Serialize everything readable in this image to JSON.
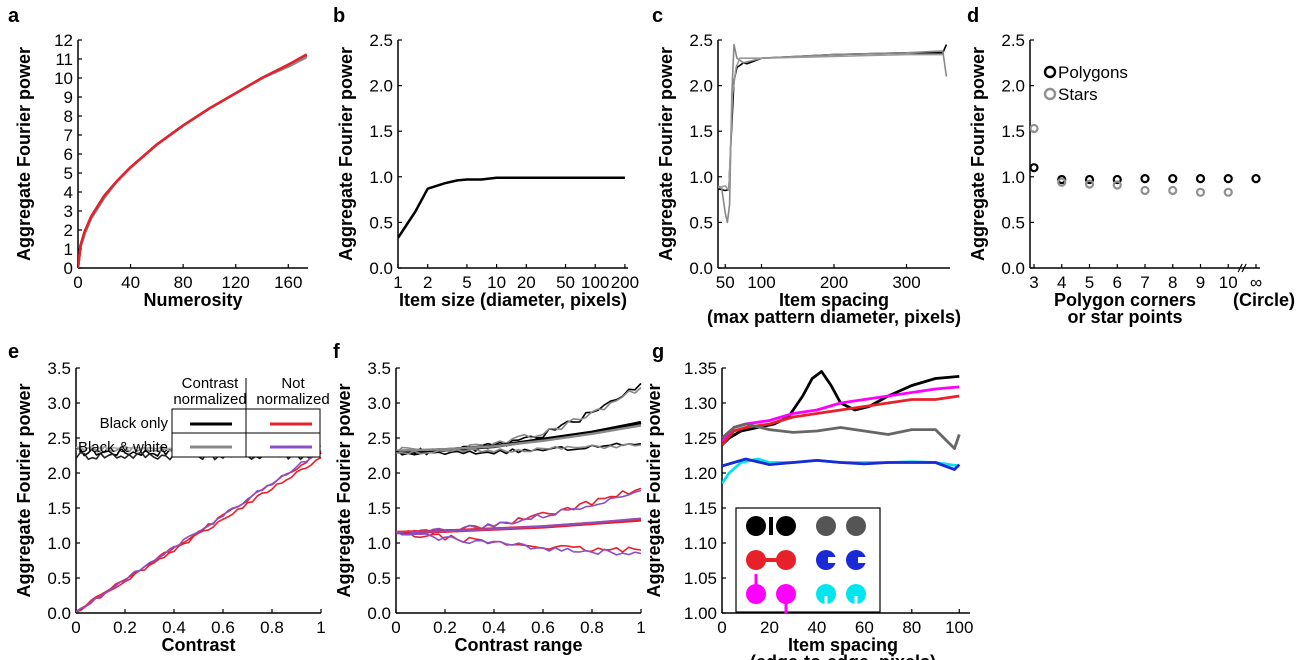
{
  "chart_data": [
    {
      "panel": "a",
      "type": "line",
      "xlabel": "Numerosity",
      "ylabel": "Aggregate Fourier power",
      "xlim": [
        0,
        175
      ],
      "ylim": [
        0,
        12
      ],
      "xticks": [
        0,
        40,
        80,
        120,
        160
      ],
      "yticks": [
        0,
        1,
        2,
        3,
        4,
        5,
        6,
        7,
        8,
        9,
        10,
        11,
        12
      ],
      "series": [
        {
          "color": "#000000",
          "x": [
            0,
            2,
            5,
            10,
            20,
            30,
            40,
            60,
            80,
            100,
            120,
            140,
            160,
            174
          ],
          "y": [
            0,
            1.2,
            1.9,
            2.7,
            3.8,
            4.6,
            5.3,
            6.5,
            7.5,
            8.4,
            9.2,
            10.0,
            10.7,
            11.2
          ]
        },
        {
          "color": "#888888",
          "x": [
            0,
            2,
            5,
            10,
            20,
            30,
            40,
            60,
            80,
            100,
            120,
            140,
            160,
            174
          ],
          "y": [
            0,
            1.1,
            1.8,
            2.6,
            3.7,
            4.6,
            5.3,
            6.5,
            7.5,
            8.4,
            9.2,
            10.0,
            10.6,
            11.1
          ]
        },
        {
          "color": "#e8202a",
          "x": [
            0,
            2,
            5,
            10,
            20,
            30,
            40,
            60,
            80,
            100,
            120,
            140,
            160,
            174
          ],
          "y": [
            0,
            1.2,
            1.9,
            2.7,
            3.8,
            4.6,
            5.3,
            6.5,
            7.5,
            8.4,
            9.2,
            10.0,
            10.7,
            11.25
          ]
        }
      ]
    },
    {
      "panel": "b",
      "type": "line",
      "xlabel": "Item size (diameter, pixels)",
      "ylabel": "Aggregate Fourier power",
      "xscale": "log",
      "xlim": [
        1,
        215
      ],
      "ylim": [
        0,
        2.5
      ],
      "xticks": [
        1,
        2,
        5,
        10,
        20,
        50,
        100,
        200
      ],
      "yticks": [
        0,
        0.5,
        1.0,
        1.5,
        2.0,
        2.5
      ],
      "series": [
        {
          "color": "#000000",
          "x": [
            1,
            1.5,
            2,
            3,
            4,
            5,
            7,
            10,
            20,
            50,
            100,
            200
          ],
          "y": [
            0.33,
            0.62,
            0.87,
            0.93,
            0.96,
            0.97,
            0.97,
            0.99,
            0.99,
            0.99,
            0.99,
            0.99
          ]
        }
      ]
    },
    {
      "panel": "c",
      "type": "line",
      "xlabel": "Item spacing\n(max pattern diameter, pixels)",
      "ylabel": "Aggregate Fourier power",
      "xlim": [
        40,
        360
      ],
      "ylim": [
        0,
        2.5
      ],
      "xticks": [
        50,
        100,
        200,
        300
      ],
      "yticks": [
        0,
        0.5,
        1.0,
        1.5,
        2.0,
        2.5
      ],
      "series": [
        {
          "color": "#000000",
          "x": [
            40,
            45,
            50,
            55,
            58,
            62,
            66,
            70,
            75,
            80,
            90,
            100,
            150,
            200,
            250,
            300,
            350,
            355
          ],
          "y": [
            0.87,
            0.86,
            0.85,
            0.86,
            1.4,
            2.05,
            2.2,
            2.22,
            2.25,
            2.24,
            2.27,
            2.3,
            2.32,
            2.34,
            2.35,
            2.36,
            2.36,
            2.45
          ]
        },
        {
          "color": "#888888",
          "x": [
            40,
            45,
            50,
            53,
            56,
            59,
            62,
            66,
            70,
            75,
            80,
            90,
            100,
            150,
            200,
            250,
            300,
            350,
            355
          ],
          "y": [
            0.9,
            0.88,
            0.6,
            0.5,
            0.7,
            1.9,
            2.45,
            2.3,
            2.28,
            2.25,
            2.26,
            2.28,
            2.3,
            2.32,
            2.34,
            2.35,
            2.36,
            2.38,
            2.1
          ]
        },
        {
          "color": "#999999",
          "x": [
            40,
            50,
            55,
            60,
            65,
            70,
            80,
            100,
            150,
            200,
            250,
            300,
            350
          ],
          "y": [
            0.88,
            0.9,
            0.85,
            1.9,
            2.2,
            2.3,
            2.3,
            2.3,
            2.31,
            2.32,
            2.33,
            2.34,
            2.34
          ]
        }
      ]
    },
    {
      "panel": "d",
      "type": "scatter",
      "xlabel": "Polygon corners\nor star points",
      "xlabel2": "(Circle)",
      "ylabel": "Aggregate Fourier power",
      "ylim": [
        0,
        2.5
      ],
      "categories": [
        "3",
        "4",
        "5",
        "6",
        "7",
        "8",
        "9",
        "10",
        "∞"
      ],
      "yticks": [
        0,
        0.5,
        1.0,
        1.5,
        2.0,
        2.5
      ],
      "series": [
        {
          "name": "Polygons",
          "color": "#000000",
          "values": [
            1.1,
            0.97,
            0.97,
            0.97,
            0.98,
            0.98,
            0.98,
            0.98,
            0.98
          ]
        },
        {
          "name": "Stars",
          "color": "#909090",
          "values": [
            1.53,
            0.94,
            0.92,
            0.91,
            0.85,
            0.85,
            0.83,
            0.83,
            null
          ]
        }
      ]
    },
    {
      "panel": "e",
      "type": "line",
      "xlabel": "Contrast",
      "ylabel": "Aggregate Fourier power",
      "xlim": [
        0,
        1
      ],
      "ylim": [
        0,
        3.5
      ],
      "xticks": [
        0,
        0.2,
        0.4,
        0.6,
        0.8,
        1
      ],
      "yticks": [
        0,
        0.5,
        1.0,
        1.5,
        2.0,
        2.5,
        3.0,
        3.5
      ],
      "legend": {
        "col_headers": [
          "Contrast normalized",
          "Not normalized"
        ],
        "row_labels": [
          "Black only",
          "Black & white"
        ]
      },
      "series": [
        {
          "color": "#000000",
          "kind": "flat",
          "y": 2.3,
          "noise": 0.06
        },
        {
          "color": "#222222",
          "kind": "flat",
          "y": 2.25,
          "noise": 0.06
        },
        {
          "color": "#888888",
          "kind": "flat",
          "y": 2.34,
          "noise": 0.04
        },
        {
          "color": "#aaaaaa",
          "kind": "flat",
          "y": 2.36,
          "noise": 0.03
        },
        {
          "color": "#e8202a",
          "kind": "ramp",
          "x": [
            0,
            1
          ],
          "y": [
            0.02,
            2.3
          ]
        },
        {
          "color": "#e8202a",
          "kind": "ramp",
          "x": [
            0,
            1
          ],
          "y": [
            0.02,
            2.22
          ]
        },
        {
          "color": "#8a4fc6",
          "kind": "ramp",
          "x": [
            0,
            1
          ],
          "y": [
            0.02,
            2.32
          ]
        }
      ]
    },
    {
      "panel": "f",
      "type": "line",
      "xlabel": "Contrast range",
      "ylabel": "Aggregate Fourier power",
      "xlim": [
        0,
        1
      ],
      "ylim": [
        0,
        3.5
      ],
      "xticks": [
        0,
        0.2,
        0.4,
        0.6,
        0.8,
        1
      ],
      "yticks": [
        0,
        0.5,
        1.0,
        1.5,
        2.0,
        2.5,
        3.0,
        3.5
      ],
      "series": [
        {
          "color": "#000000",
          "x": [
            0,
            0.2,
            0.4,
            0.6,
            0.8,
            1
          ],
          "y": [
            2.3,
            2.31,
            2.38,
            2.55,
            2.85,
            3.28
          ],
          "noise": 0.05
        },
        {
          "color": "#888888",
          "x": [
            0,
            0.2,
            0.4,
            0.6,
            0.8,
            1
          ],
          "y": [
            2.32,
            2.33,
            2.4,
            2.56,
            2.85,
            3.22
          ],
          "noise": 0.05
        },
        {
          "color": "#000000",
          "x": [
            0,
            0.2,
            0.4,
            0.6,
            0.8,
            1
          ],
          "y": [
            2.3,
            2.33,
            2.38,
            2.48,
            2.58,
            2.72
          ],
          "width": 3.5
        },
        {
          "color": "#888888",
          "x": [
            0,
            0.2,
            0.4,
            0.6,
            0.8,
            1
          ],
          "y": [
            2.32,
            2.34,
            2.38,
            2.46,
            2.56,
            2.68
          ],
          "width": 2.5
        },
        {
          "color": "#000000",
          "x": [
            0,
            0.2,
            0.4,
            0.6,
            0.8,
            1
          ],
          "y": [
            2.28,
            2.28,
            2.3,
            2.33,
            2.37,
            2.42
          ],
          "noise": 0.03
        },
        {
          "color": "#888888",
          "x": [
            0,
            0.2,
            0.4,
            0.6,
            0.8,
            1
          ],
          "y": [
            2.3,
            2.3,
            2.32,
            2.34,
            2.37,
            2.4
          ],
          "noise": 0.03
        },
        {
          "color": "#e8202a",
          "x": [
            0,
            0.2,
            0.4,
            0.6,
            0.8,
            1
          ],
          "y": [
            1.15,
            1.18,
            1.25,
            1.4,
            1.58,
            1.78
          ],
          "noise": 0.04
        },
        {
          "color": "#8a4fc6",
          "x": [
            0,
            0.2,
            0.4,
            0.6,
            0.8,
            1
          ],
          "y": [
            1.15,
            1.18,
            1.25,
            1.38,
            1.56,
            1.75
          ],
          "noise": 0.04
        },
        {
          "color": "#e8202a",
          "x": [
            0,
            0.2,
            0.4,
            0.6,
            0.8,
            1
          ],
          "y": [
            1.15,
            1.17,
            1.2,
            1.23,
            1.28,
            1.33
          ],
          "width": 3.5
        },
        {
          "color": "#8a4fc6",
          "x": [
            0,
            0.2,
            0.4,
            0.6,
            0.8,
            1
          ],
          "y": [
            1.15,
            1.17,
            1.2,
            1.24,
            1.29,
            1.35
          ],
          "width": 2
        },
        {
          "color": "#e8202a",
          "x": [
            0,
            0.2,
            0.4,
            0.6,
            0.8,
            1
          ],
          "y": [
            1.13,
            1.08,
            1.0,
            0.95,
            0.9,
            0.9
          ],
          "noise": 0.04
        },
        {
          "color": "#8a4fc6",
          "x": [
            0,
            0.2,
            0.4,
            0.6,
            0.8,
            1
          ],
          "y": [
            1.13,
            1.07,
            1.0,
            0.93,
            0.88,
            0.85
          ],
          "noise": 0.04
        }
      ]
    },
    {
      "panel": "g",
      "type": "line",
      "xlabel": "Item spacing\n(edge-to-edge, pixels)",
      "ylabel": "Aggregate Fourier power",
      "xlim": [
        0,
        102
      ],
      "ylim": [
        1.0,
        1.35
      ],
      "xticks": [
        0,
        20,
        40,
        60,
        80,
        100
      ],
      "yticks": [
        1.0,
        1.05,
        1.1,
        1.15,
        1.2,
        1.25,
        1.3,
        1.35
      ],
      "series": [
        {
          "color": "#000000",
          "x": [
            0,
            3,
            8,
            15,
            22,
            28,
            34,
            38,
            42,
            46,
            50,
            56,
            62,
            70,
            80,
            90,
            100
          ],
          "y": [
            1.24,
            1.25,
            1.26,
            1.265,
            1.27,
            1.28,
            1.31,
            1.335,
            1.345,
            1.325,
            1.3,
            1.29,
            1.295,
            1.31,
            1.325,
            1.335,
            1.338
          ]
        },
        {
          "color": "#ff00ff",
          "x": [
            0,
            5,
            10,
            20,
            30,
            40,
            50,
            60,
            70,
            80,
            90,
            100
          ],
          "y": [
            1.245,
            1.265,
            1.27,
            1.275,
            1.285,
            1.29,
            1.3,
            1.305,
            1.31,
            1.315,
            1.32,
            1.323
          ]
        },
        {
          "color": "#e8202a",
          "x": [
            0,
            5,
            10,
            20,
            30,
            40,
            50,
            60,
            70,
            80,
            90,
            100
          ],
          "y": [
            1.24,
            1.26,
            1.265,
            1.27,
            1.28,
            1.285,
            1.29,
            1.295,
            1.3,
            1.305,
            1.305,
            1.31
          ]
        },
        {
          "color": "#666666",
          "x": [
            0,
            5,
            10,
            20,
            30,
            40,
            50,
            60,
            70,
            80,
            90,
            98,
            100
          ],
          "y": [
            1.25,
            1.265,
            1.27,
            1.262,
            1.258,
            1.26,
            1.265,
            1.26,
            1.255,
            1.262,
            1.262,
            1.235,
            1.255
          ]
        },
        {
          "color": "#00e5ee",
          "x": [
            0,
            3,
            8,
            15,
            20,
            30,
            40,
            50,
            60,
            70,
            80,
            90,
            100
          ],
          "y": [
            1.185,
            1.2,
            1.215,
            1.22,
            1.215,
            1.215,
            1.218,
            1.215,
            1.215,
            1.215,
            1.216,
            1.215,
            1.21
          ]
        },
        {
          "color": "#1a2ad6",
          "x": [
            0,
            5,
            10,
            20,
            30,
            40,
            50,
            60,
            70,
            80,
            90,
            98,
            100
          ],
          "y": [
            1.21,
            1.215,
            1.22,
            1.212,
            1.215,
            1.218,
            1.215,
            1.213,
            1.215,
            1.215,
            1.215,
            1.205,
            1.212
          ]
        }
      ]
    }
  ]
}
